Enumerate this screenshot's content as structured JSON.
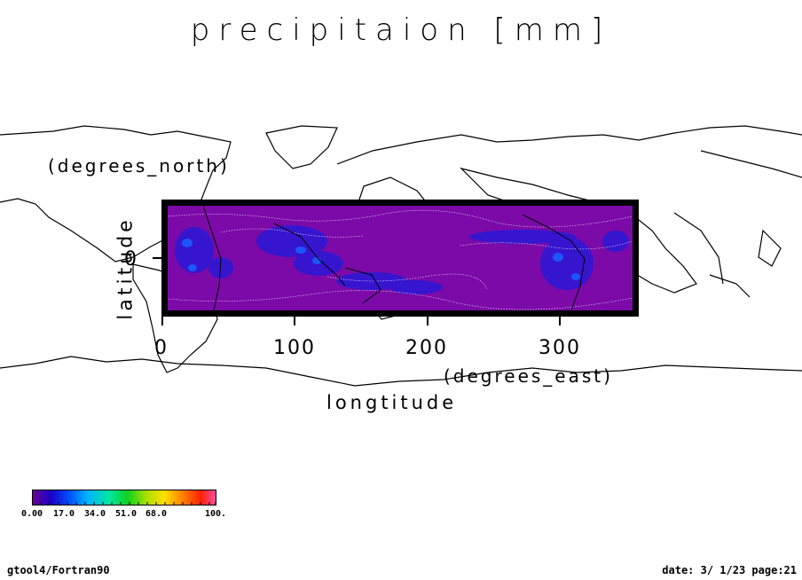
{
  "title": "precipitaion [mm]",
  "y_axis": {
    "label": "latitude",
    "unit": "(degrees_north)",
    "tick_labels": [
      "0"
    ]
  },
  "x_axis": {
    "label": "longtitude",
    "unit": "(degrees_east)",
    "tick_labels": [
      "0",
      "100",
      "200",
      "300"
    ]
  },
  "colorbar": {
    "labels": [
      "0.00",
      "17.0",
      "34.0",
      "51.0",
      "68.0",
      "100."
    ],
    "colors": [
      "#6a0090",
      "#1a00c8",
      "#0050ff",
      "#00b4ff",
      "#00e8a0",
      "#10d020",
      "#a8e000",
      "#ffe000",
      "#ff8000",
      "#ff2000",
      "#ff50a0"
    ]
  },
  "field": {
    "background_color": "#7b0aa8",
    "contour_color": "#ffffff",
    "coastline_color": "#000000"
  },
  "footer": {
    "left": "gtool4/Fortran90",
    "right": "date: 3/ 1/23 page:21"
  }
}
